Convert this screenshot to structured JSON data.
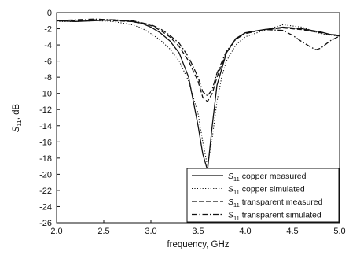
{
  "chart_data": {
    "type": "line",
    "xlabel": "frequency, GHz",
    "ylabel": {
      "main": "S",
      "sub": "11",
      "rest": ", dB"
    },
    "xlim": [
      2.0,
      5.0
    ],
    "ylim": [
      -26,
      0
    ],
    "xticks": [
      "2.0",
      "2.5",
      "3.0",
      "3.5",
      "4.0",
      "4.5",
      "5.0"
    ],
    "yticks": [
      "0",
      "-2",
      "-4",
      "-6",
      "-8",
      "-10",
      "-12",
      "-14",
      "-16",
      "-18",
      "-20",
      "-22",
      "-24",
      "-26"
    ],
    "grid": false,
    "legend_position": "bottom-right",
    "series": [
      {
        "name": "copper measured",
        "symbol": "S",
        "subscript": "11",
        "style": "solid",
        "x": [
          2.0,
          2.2,
          2.4,
          2.6,
          2.8,
          2.9,
          3.0,
          3.1,
          3.2,
          3.3,
          3.4,
          3.45,
          3.5,
          3.55,
          3.6,
          3.65,
          3.7,
          3.8,
          3.9,
          4.0,
          4.2,
          4.4,
          4.6,
          4.8,
          4.9,
          5.0
        ],
        "y": [
          -1.0,
          -1.1,
          -1.0,
          -0.9,
          -1.1,
          -1.3,
          -1.8,
          -2.5,
          -3.5,
          -5.0,
          -8.0,
          -11.0,
          -14.0,
          -17.5,
          -19.5,
          -14.0,
          -9.0,
          -5.0,
          -3.2,
          -2.5,
          -2.1,
          -1.8,
          -2.0,
          -2.4,
          -2.7,
          -2.9
        ]
      },
      {
        "name": "copper simulated",
        "symbol": "S",
        "subscript": "11",
        "style": "dotted",
        "x": [
          2.0,
          2.2,
          2.4,
          2.6,
          2.8,
          2.9,
          3.0,
          3.1,
          3.2,
          3.3,
          3.4,
          3.5,
          3.55,
          3.6,
          3.65,
          3.7,
          3.75,
          3.8,
          3.9,
          4.0,
          4.2,
          4.4,
          4.6,
          4.8,
          4.9,
          5.0
        ],
        "y": [
          -1.1,
          -1.1,
          -1.0,
          -1.1,
          -1.5,
          -1.9,
          -2.6,
          -3.4,
          -4.5,
          -6.0,
          -8.5,
          -12.5,
          -16.0,
          -19.0,
          -15.5,
          -11.0,
          -8.0,
          -6.0,
          -4.0,
          -3.0,
          -2.2,
          -1.5,
          -1.8,
          -2.6,
          -2.8,
          -2.9
        ]
      },
      {
        "name": "transparent measured",
        "symbol": "S",
        "subscript": "11",
        "style": "dashed",
        "x": [
          2.0,
          2.2,
          2.4,
          2.6,
          2.8,
          3.0,
          3.1,
          3.2,
          3.3,
          3.4,
          3.5,
          3.55,
          3.6,
          3.65,
          3.7,
          3.8,
          3.9,
          4.0,
          4.2,
          4.4,
          4.6,
          4.8,
          4.9,
          5.0
        ],
        "y": [
          -1.0,
          -1.0,
          -0.9,
          -1.0,
          -1.1,
          -1.6,
          -2.2,
          -3.0,
          -4.2,
          -6.0,
          -8.5,
          -10.5,
          -11.0,
          -10.0,
          -8.0,
          -5.0,
          -3.3,
          -2.5,
          -2.1,
          -1.9,
          -2.1,
          -2.5,
          -2.7,
          -2.8
        ]
      },
      {
        "name": "transparent simulated",
        "symbol": "S",
        "subscript": "11",
        "style": "dashdot",
        "x": [
          2.0,
          2.2,
          2.4,
          2.6,
          2.8,
          3.0,
          3.1,
          3.2,
          3.3,
          3.4,
          3.5,
          3.55,
          3.6,
          3.65,
          3.7,
          3.8,
          3.9,
          4.0,
          4.2,
          4.4,
          4.5,
          4.6,
          4.7,
          4.75,
          4.8,
          4.9,
          5.0
        ],
        "y": [
          -1.0,
          -0.9,
          -0.8,
          -0.9,
          -1.0,
          -1.5,
          -2.0,
          -2.8,
          -3.8,
          -5.5,
          -8.0,
          -9.8,
          -10.3,
          -9.5,
          -7.5,
          -4.8,
          -3.3,
          -2.6,
          -2.1,
          -2.2,
          -2.8,
          -3.6,
          -4.3,
          -4.6,
          -4.4,
          -3.5,
          -2.9
        ]
      }
    ]
  }
}
